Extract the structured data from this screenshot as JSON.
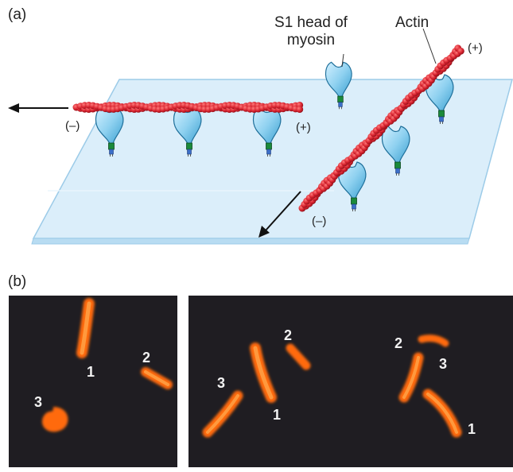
{
  "panel_a": {
    "label": "(a)",
    "s1_label_line1": "S1 head of",
    "s1_label_line2": "myosin",
    "actin_label": "Actin",
    "horiz_minus": "(–)",
    "horiz_plus": "(+)",
    "diag_minus": "(–)",
    "diag_plus": "(+)"
  },
  "panel_b": {
    "label": "(b)",
    "frames": [
      {
        "labels": [
          "1",
          "2",
          "3"
        ]
      },
      {
        "labels": [
          "1",
          "2",
          "3"
        ]
      },
      {
        "labels": [
          "1",
          "2",
          "3"
        ]
      }
    ]
  },
  "colors": {
    "actin": "#d8232f",
    "myosin_head": "#8fd1f0",
    "glass": "#dbeefa",
    "filament_glow": "#ff7a1a",
    "micro_bg": "#1f1d22"
  }
}
